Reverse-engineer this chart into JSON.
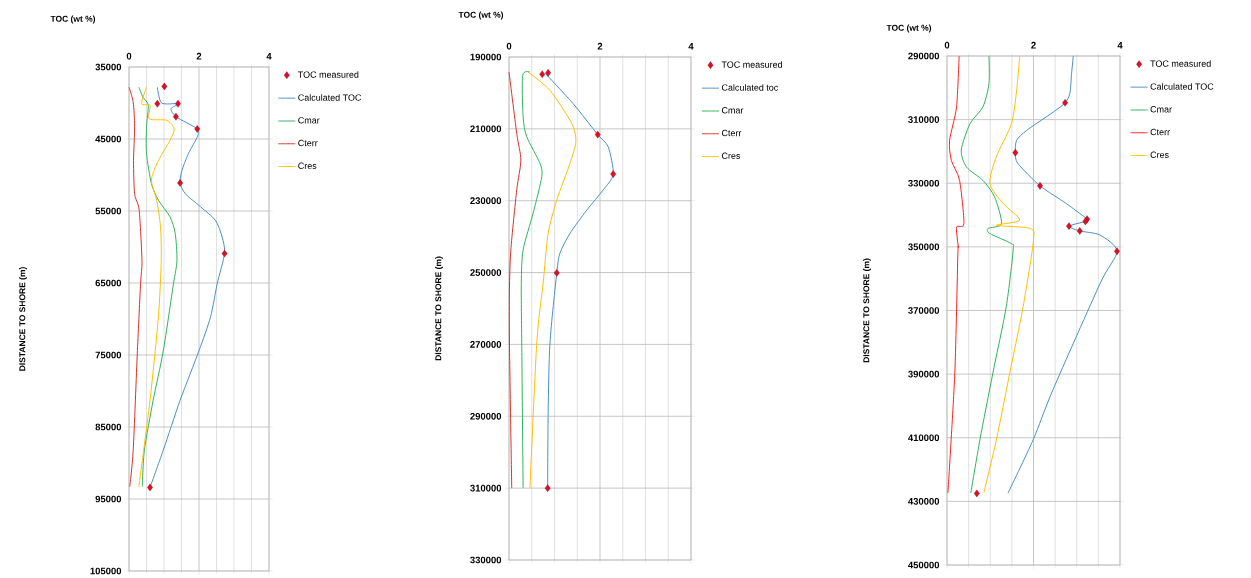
{
  "chart_data": [
    {
      "type": "line",
      "xlabel": "TOC (wt %)",
      "ylabel": "DISTANCE TO SHORE (m)",
      "xlim": [
        0,
        4
      ],
      "xticks": [
        0,
        2,
        4
      ],
      "ylim": [
        105000,
        35000
      ],
      "yticks": [
        35000,
        45000,
        55000,
        65000,
        75000,
        85000,
        95000,
        105000
      ],
      "grid": true,
      "legend": "top right",
      "series": [
        {
          "name": "TOC measured",
          "type": "scatter",
          "marker": "diamond",
          "color": "#e0101a",
          "x": [
            1.01,
            0.81,
            1.4,
            1.34,
            1.95,
            1.46,
            2.73,
            0.6
          ],
          "values": [
            37700,
            40100,
            40100,
            41900,
            43600,
            51100,
            60900,
            93400
          ]
        },
        {
          "name": "Calculated TOC",
          "type": "line",
          "color": "#4a8fcc",
          "x": [
            0.81,
            0.93,
            1.4,
            1.2,
            1.34,
            1.95,
            1.95,
            1.7,
            1.51,
            1.46,
            1.61,
            2.04,
            2.47,
            2.66,
            2.73,
            2.52,
            2.33,
            2.0,
            1.46,
            0.98,
            0.6
          ],
          "values": [
            37800,
            40000,
            40100,
            40800,
            41900,
            43600,
            44700,
            47000,
            49400,
            51100,
            52600,
            54400,
            56300,
            58600,
            60900,
            65100,
            69700,
            74400,
            81300,
            88200,
            93400
          ]
        },
        {
          "name": "Cmar",
          "type": "line",
          "color": "#2eb35c",
          "x": [
            0.28,
            0.4,
            0.55,
            0.5,
            0.5,
            0.64,
            0.84,
            1.17,
            1.32,
            1.37,
            1.27,
            0.98,
            0.69,
            0.44,
            0.38
          ],
          "values": [
            37800,
            39200,
            40300,
            43300,
            47000,
            51200,
            53500,
            55800,
            58100,
            61900,
            65100,
            74400,
            81300,
            88200,
            93300
          ]
        },
        {
          "name": "Cterr",
          "type": "line",
          "color": "#d9302b",
          "x": [
            0.0,
            0.12,
            0.16,
            0.13,
            0.16,
            0.29,
            0.37,
            0.33,
            0.24,
            0.12,
            0.02
          ],
          "values": [
            37800,
            39900,
            43300,
            48000,
            52600,
            54900,
            61900,
            65100,
            74400,
            88200,
            93300
          ]
        },
        {
          "name": "Cres",
          "type": "line",
          "color": "#ffc000",
          "x": [
            0.5,
            0.36,
            0.6,
            0.58,
            1.08,
            1.29,
            1.17,
            0.84,
            0.64,
            0.79,
            0.9,
            0.92,
            0.84,
            0.6,
            0.28
          ],
          "values": [
            37800,
            40100,
            40300,
            42200,
            42400,
            43600,
            45200,
            48000,
            50700,
            53500,
            57200,
            61900,
            69700,
            81300,
            93300
          ]
        }
      ]
    },
    {
      "type": "line",
      "xlabel": "TOC (wt %)",
      "ylabel": "DISTANCE TO SHORE (m)",
      "xlim": [
        0,
        4
      ],
      "xticks": [
        0,
        2,
        4
      ],
      "ylim": [
        330000,
        190000
      ],
      "yticks": [
        190000,
        210000,
        230000,
        250000,
        270000,
        290000,
        310000,
        330000
      ],
      "grid": true,
      "legend": "top right",
      "series": [
        {
          "name": "TOC measured",
          "type": "scatter",
          "marker": "diamond",
          "color": "#e0101a",
          "x": [
            0.73,
            0.86,
            1.95,
            2.29,
            1.05,
            0.85
          ],
          "values": [
            194800,
            194400,
            211600,
            222600,
            250100,
            310000
          ]
        },
        {
          "name": "Calculated  toc",
          "type": "line",
          "color": "#4a8fcc",
          "x": [
            0.8,
            1.41,
            1.95,
            2.18,
            2.29,
            2.07,
            1.71,
            1.34,
            1.12,
            1.05,
            0.9,
            0.86,
            0.85
          ],
          "values": [
            194600,
            203000,
            211600,
            215000,
            222600,
            227000,
            232600,
            239100,
            244600,
            250100,
            269600,
            289000,
            310000
          ]
        },
        {
          "name": "Cmar",
          "type": "line",
          "color": "#2eb35c",
          "x": [
            0.46,
            0.3,
            0.31,
            0.39,
            0.68,
            0.72,
            0.53,
            0.31,
            0.27,
            0.28,
            0.31
          ],
          "values": [
            194200,
            195100,
            206700,
            212200,
            219600,
            223300,
            233500,
            243700,
            253000,
            269600,
            310000
          ]
        },
        {
          "name": "Cterr",
          "type": "line",
          "color": "#d9302b",
          "x": [
            0.0,
            0.17,
            0.26,
            0.17,
            0.04,
            0.01,
            0.01,
            0.06
          ],
          "values": [
            194200,
            211300,
            218700,
            227000,
            243700,
            254800,
            269600,
            310000
          ]
        },
        {
          "name": "Cres",
          "type": "line",
          "color": "#ffc000",
          "x": [
            0.42,
            0.9,
            1.38,
            1.47,
            1.34,
            1.05,
            0.86,
            0.75,
            0.61,
            0.46
          ],
          "values": [
            194200,
            199300,
            208500,
            213600,
            219600,
            229800,
            239100,
            253000,
            269600,
            310000
          ]
        }
      ]
    },
    {
      "type": "line",
      "xlabel": "TOC (wt %)",
      "ylabel": "DISTANCE TO SHORE (m)",
      "xlim": [
        0,
        4
      ],
      "xticks": [
        0,
        2,
        4
      ],
      "ylim": [
        450000,
        290000
      ],
      "yticks": [
        290000,
        310000,
        330000,
        350000,
        370000,
        390000,
        410000,
        430000,
        450000
      ],
      "grid": true,
      "legend": "top right",
      "series": [
        {
          "name": "TOC measured",
          "type": "scatter",
          "marker": "diamond",
          "color": "#e0101a",
          "x": [
            2.73,
            1.58,
            2.15,
            3.24,
            3.2,
            2.82,
            3.07,
            3.93,
            0.69
          ],
          "values": [
            304700,
            320400,
            330800,
            341300,
            342000,
            343500,
            345000,
            351400,
            427500
          ]
        },
        {
          "name": "Calculated TOC",
          "type": "line",
          "color": "#4a8fcc",
          "x": [
            2.92,
            2.88,
            2.84,
            2.73,
            2.46,
            1.84,
            1.61,
            1.58,
            1.64,
            2.15,
            2.76,
            3.24,
            3.2,
            2.82,
            3.07,
            3.54,
            3.93,
            3.54,
            2.45,
            1.99,
            1.41
          ],
          "values": [
            290000,
            295500,
            301800,
            304700,
            307600,
            313400,
            316500,
            320400,
            323800,
            330800,
            336400,
            341300,
            342000,
            343500,
            345000,
            346300,
            351400,
            361500,
            394900,
            410700,
            427400
          ]
        },
        {
          "name": "Cmar",
          "type": "line",
          "color": "#2eb35c",
          "x": [
            0.97,
            0.97,
            0.83,
            0.53,
            0.33,
            0.45,
            0.83,
            1.1,
            1.26,
            0.95,
            0.99,
            1.49,
            1.53,
            1.37,
            1.06,
            0.76,
            0.55
          ],
          "values": [
            290000,
            298700,
            306000,
            311300,
            319600,
            324900,
            329100,
            334300,
            342700,
            344200,
            345800,
            349000,
            351000,
            368800,
            389700,
            410700,
            427400
          ]
        },
        {
          "name": "Cterr",
          "type": "line",
          "color": "#ff2020",
          "x": [
            0.28,
            0.22,
            0.06,
            0.1,
            0.29,
            0.39,
            0.22,
            0.26,
            0.25,
            0.18,
            0.02
          ],
          "values": [
            290000,
            306000,
            316500,
            322800,
            329100,
            342700,
            343800,
            350000,
            352400,
            389700,
            427400
          ]
        },
        {
          "name": "Cres",
          "type": "line",
          "color": "#ffc000",
          "x": [
            1.68,
            1.61,
            1.49,
            1.14,
            0.99,
            1.3,
            1.68,
            1.14,
            1.92,
            2.0,
            1.76,
            1.45,
            1.14,
            0.85
          ],
          "values": [
            290000,
            300800,
            311300,
            321700,
            330100,
            336400,
            341600,
            343200,
            344200,
            347900,
            368800,
            389700,
            410700,
            427400
          ]
        }
      ]
    }
  ]
}
